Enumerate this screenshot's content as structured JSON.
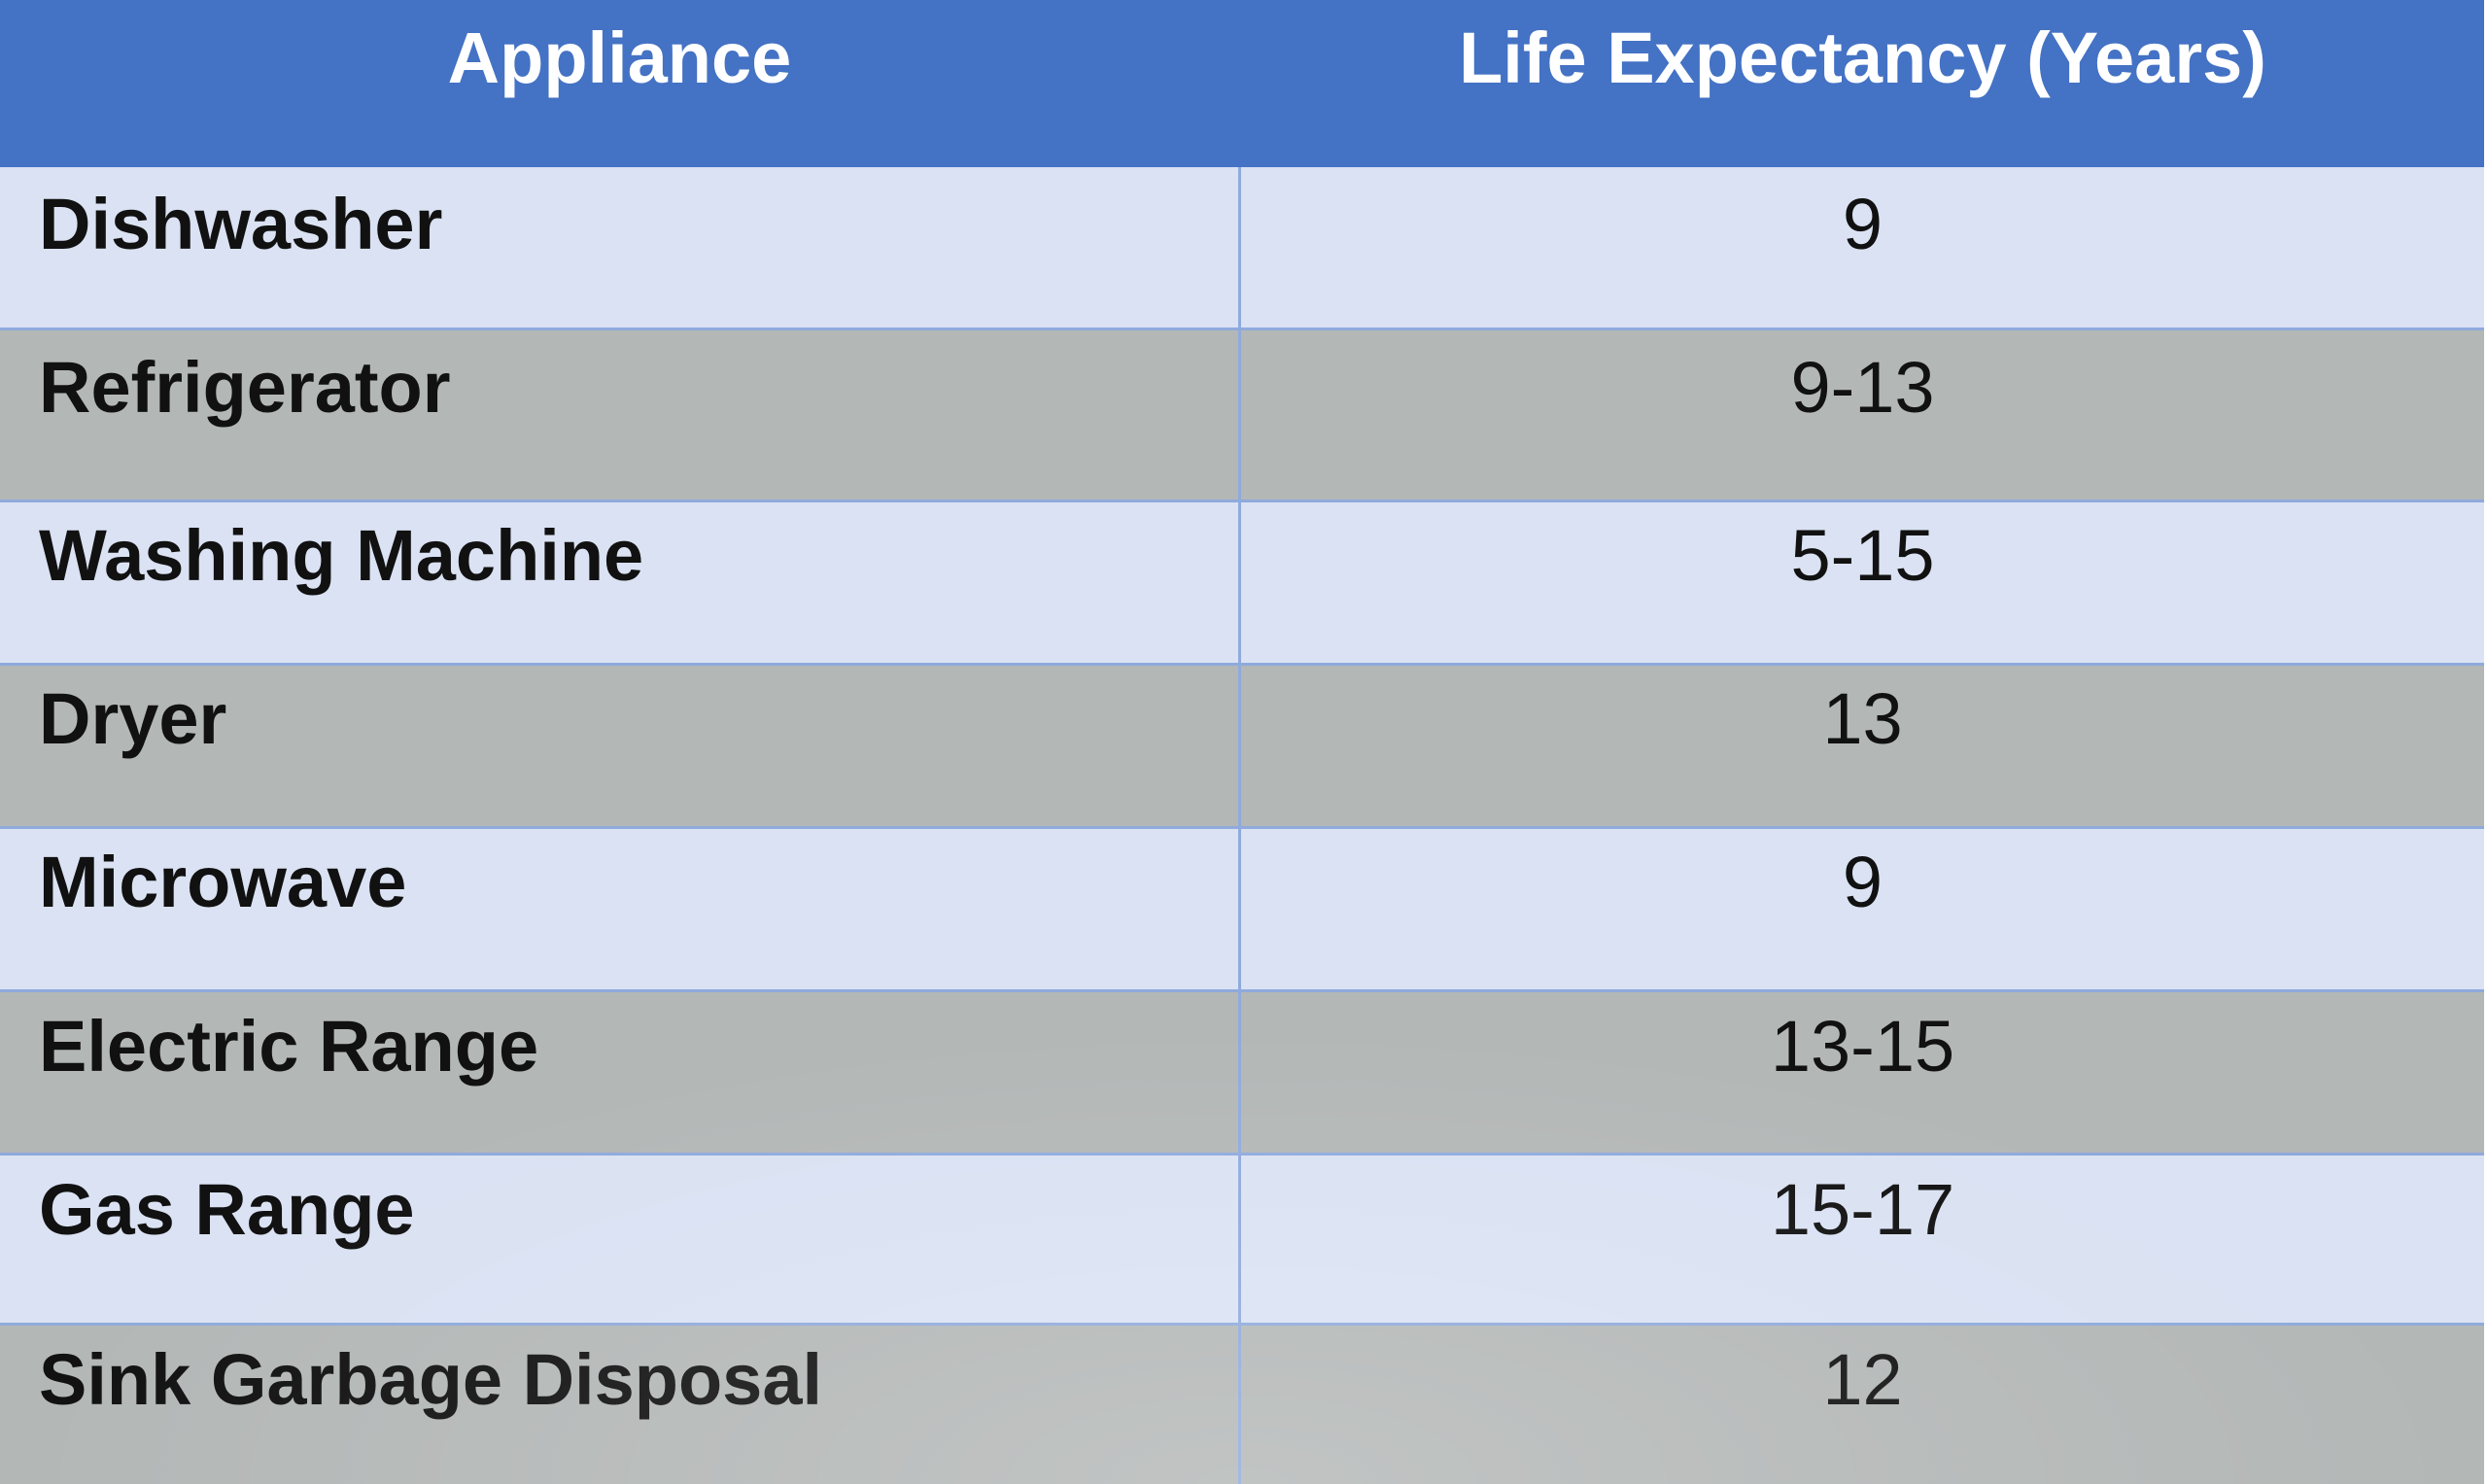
{
  "table": {
    "headers": [
      "Appliance",
      "Life Expectancy (Years)"
    ],
    "rows": [
      {
        "appliance": "Dishwasher",
        "life": "9"
      },
      {
        "appliance": "Refrigerator",
        "life": "9-13"
      },
      {
        "appliance": "Washing Machine",
        "life": "5-15"
      },
      {
        "appliance": "Dryer",
        "life": "13"
      },
      {
        "appliance": "Microwave",
        "life": "9"
      },
      {
        "appliance": "Electric Range",
        "life": "13-15"
      },
      {
        "appliance": "Gas Range",
        "life": "15-17"
      },
      {
        "appliance": "Sink Garbage Disposal",
        "life": "12"
      }
    ]
  },
  "colors": {
    "header_bg": "#4472c4",
    "row_light": "#dae2f3",
    "row_dark": "#b3b7b6",
    "border": "#8faadc"
  }
}
